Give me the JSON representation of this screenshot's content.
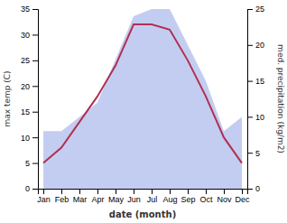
{
  "chart_data": {
    "type": "line",
    "categories": [
      "Jan",
      "Feb",
      "Mar",
      "Apr",
      "May",
      "Jun",
      "Jul",
      "Aug",
      "Sep",
      "Oct",
      "Nov",
      "Dec"
    ],
    "xlabel": "date (month)",
    "ylabel": "max temp (C)",
    "y2label": "med. precipitation (kg/m2)",
    "series": [
      {
        "type": "area",
        "axis": "y2",
        "color": "#b8c4ee",
        "values": [
          8,
          8,
          10,
          12,
          18,
          24,
          25,
          25,
          20,
          15,
          8,
          10
        ]
      },
      {
        "type": "line",
        "color": "#b03050",
        "values": [
          5,
          8,
          13,
          18,
          24,
          32,
          32,
          31,
          25,
          18,
          10,
          5
        ]
      }
    ],
    "ylim": [
      0,
      35
    ],
    "yticks": [
      0,
      5,
      10,
      15,
      20,
      25,
      30,
      35
    ],
    "y2lim": [
      0,
      25
    ],
    "y2ticks": [
      0,
      5,
      10,
      15,
      20,
      25
    ],
    "grid": false
  }
}
